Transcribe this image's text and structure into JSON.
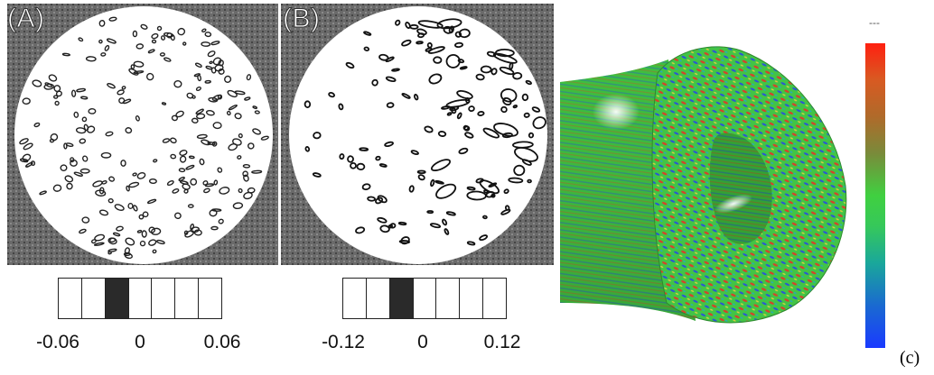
{
  "panels": {
    "a": {
      "label": "(A)",
      "colorbar": {
        "ticks": [
          "-0.06",
          "0",
          "0.06"
        ],
        "cells": 7,
        "dark_cell_index": 2
      }
    },
    "b": {
      "label": "(B)",
      "colorbar": {
        "ticks": [
          "-0.12",
          "0",
          "0.12"
        ],
        "cells": 7,
        "dark_cell_index": 2
      }
    },
    "c": {
      "label": "(c)",
      "colorbar_top": "---",
      "colors": [
        "#ff2010",
        "#b06a2a",
        "#40d040",
        "#1a6ad0",
        "#1a3aff"
      ]
    }
  },
  "colors": {
    "frame_gray": "#5a5a5a",
    "disk": "#ffffff",
    "torus_green": "#3fbf3f"
  }
}
